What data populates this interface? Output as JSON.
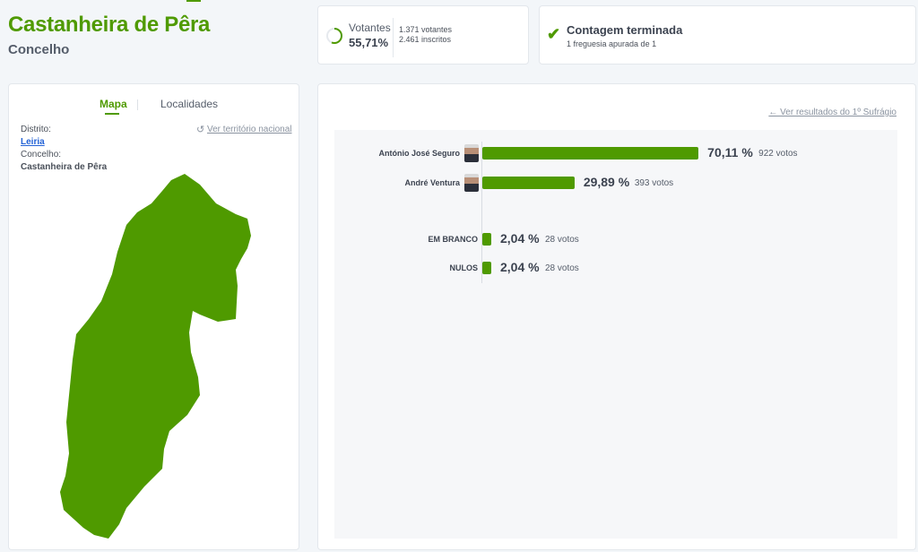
{
  "header": {
    "title": "Castanheira de Pêra",
    "subtitle": "Concelho"
  },
  "votantes": {
    "label": "Votantes",
    "percent": "55,71%",
    "percent_value": 55.71,
    "votantes": "1.371 votantes",
    "inscritos": "2.461 inscritos"
  },
  "contagem": {
    "title": "Contagem terminada",
    "detail": "1 freguesia apurada de 1"
  },
  "map_panel": {
    "tabs": [
      {
        "label": "Mapa",
        "active": true
      },
      {
        "label": "Localidades",
        "active": false
      }
    ],
    "distrito_label": "Distrito:",
    "distrito_value": "Leiria",
    "concelho_label": "Concelho:",
    "concelho_value": "Castanheira de Pêra",
    "national_link": "Ver território nacional"
  },
  "results": {
    "back_link": "← Ver resultados do 1º Sufrágio"
  },
  "colors": {
    "accent": "#4f9a00"
  },
  "chart_data": {
    "type": "bar",
    "orientation": "horizontal",
    "categories": [
      "António José Seguro",
      "André Ventura",
      "EM BRANCO",
      "NULOS"
    ],
    "values": [
      70.11,
      29.89,
      2.04,
      2.04
    ],
    "pct_labels": [
      "70,11 %",
      "29,89 %",
      "2,04 %",
      "2,04 %"
    ],
    "vote_labels": [
      "922 votos",
      "393 votos",
      "28 votos",
      "28 votos"
    ],
    "votes": [
      922,
      393,
      28,
      28
    ],
    "xlim": [
      0,
      100
    ]
  }
}
